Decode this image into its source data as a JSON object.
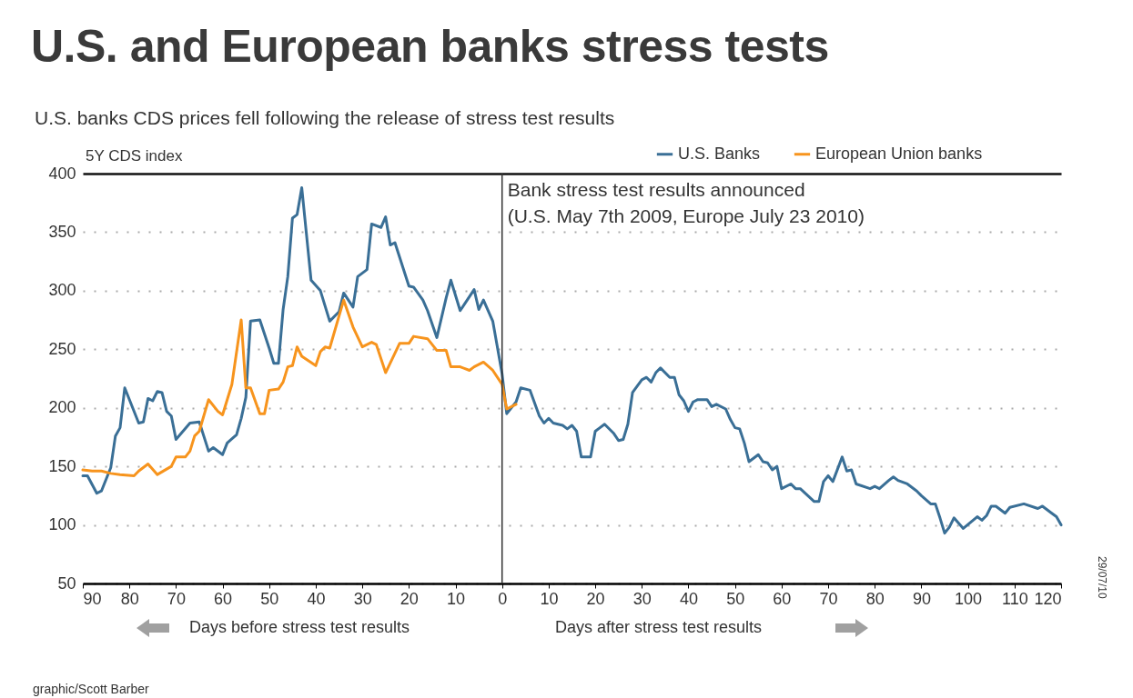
{
  "chart_data": {
    "type": "line",
    "title": "U.S. and European banks stress tests",
    "subtitle": "U.S. banks CDS prices fell following the release of stress test results",
    "annotations": [
      "5Y CDS index",
      "Days before stress test results",
      "Days after stress test results",
      "graphic/Scott Barber",
      "29/07/10"
    ],
    "xlim": [
      -90,
      120
    ],
    "xticks": [
      {
        "value": -90,
        "label": "90"
      },
      {
        "value": -80,
        "label": "80"
      },
      {
        "value": -70,
        "label": "70"
      },
      {
        "value": -60,
        "label": "60"
      },
      {
        "value": -50,
        "label": "50"
      },
      {
        "value": -40,
        "label": "40"
      },
      {
        "value": -30,
        "label": "30"
      },
      {
        "value": -20,
        "label": "20"
      },
      {
        "value": -10,
        "label": "10"
      },
      0,
      10,
      20,
      30,
      40,
      50,
      60,
      70,
      80,
      90,
      100,
      110,
      120
    ],
    "ylim": [
      50,
      400
    ],
    "yticks": [
      50,
      100,
      150,
      200,
      250,
      300,
      350,
      400
    ],
    "grid": "y",
    "legend": "top right",
    "line_style": "solid",
    "ref_lines": [
      {
        "axis": "x",
        "value": 0,
        "label": "Bank stress test results announced\n(U.S. May 7th 2009, Europe July 23 2010)",
        "color": "#333333"
      }
    ],
    "series": [
      {
        "name": "U.S. Banks",
        "color": "#3a6f96",
        "x": [
          -90,
          -89,
          -87,
          -86,
          -84,
          -83,
          -82,
          -81,
          -78,
          -77,
          -76,
          -75,
          -74,
          -73,
          -72,
          -71,
          -70,
          -67,
          -65,
          -63,
          -62,
          -60,
          -59,
          -57,
          -56,
          -55,
          -54,
          -52,
          -50,
          -49,
          -48,
          -47,
          -46,
          -45,
          -44,
          -43,
          -41,
          -39,
          -37,
          -35,
          -34,
          -32,
          -31,
          -29,
          -28,
          -26,
          -25,
          -24,
          -23,
          -20,
          -19,
          -17,
          -16,
          -14,
          -12,
          -11,
          -9,
          -6,
          -5,
          -4,
          -2,
          0,
          1,
          3,
          4,
          6,
          8,
          9,
          10,
          11,
          13,
          14,
          15,
          16,
          17,
          19,
          20,
          21,
          22,
          24,
          25,
          26,
          27,
          28,
          30,
          31,
          32,
          33,
          34,
          36,
          37,
          38,
          39,
          40,
          41,
          42,
          44,
          45,
          46,
          48,
          49,
          50,
          51,
          52,
          53,
          55,
          56,
          57,
          58,
          59,
          60,
          62,
          63,
          64,
          67,
          68,
          69,
          70,
          71,
          73,
          74,
          75,
          76,
          79,
          80,
          81,
          83,
          84,
          85,
          87,
          89,
          90,
          92,
          93,
          94,
          95,
          96,
          97,
          99,
          102,
          103,
          104,
          105,
          106,
          108,
          109,
          112,
          115,
          116,
          118,
          119,
          120
        ],
        "values": [
          142,
          142,
          127,
          129,
          149,
          176,
          183,
          217,
          187,
          188,
          208,
          206,
          214,
          213,
          197,
          193,
          173,
          187,
          188,
          163,
          166,
          160,
          170,
          177,
          191,
          209,
          274,
          275,
          251,
          238,
          238,
          284,
          312,
          362,
          365,
          388,
          309,
          300,
          274,
          282,
          298,
          286,
          312,
          318,
          357,
          354,
          363,
          339,
          341,
          304,
          303,
          292,
          283,
          260,
          294,
          309,
          283,
          301,
          284,
          292,
          274,
          229,
          195,
          205,
          217,
          215,
          193,
          187,
          191,
          187,
          185,
          182,
          185,
          180,
          158,
          158,
          180,
          183,
          186,
          178,
          172,
          173,
          186,
          213,
          224,
          226,
          222,
          230,
          234,
          226,
          226,
          211,
          206,
          197,
          205,
          207,
          207,
          201,
          203,
          199,
          190,
          183,
          182,
          170,
          154,
          160,
          154,
          153,
          147,
          150,
          131,
          135,
          131,
          131,
          120,
          120,
          137,
          142,
          137,
          158,
          146,
          147,
          135,
          131,
          133,
          131,
          138,
          141,
          138,
          135,
          129,
          125,
          118,
          118,
          106,
          93,
          98,
          106,
          97,
          107,
          104,
          108,
          116,
          116,
          110,
          115,
          118,
          114,
          116,
          110,
          107,
          100
        ]
      },
      {
        "name": "European Union banks",
        "color": "#f7941d",
        "x": [
          -90,
          -88,
          -86,
          -84,
          -82,
          -79,
          -78,
          -76,
          -74,
          -71,
          -70,
          -68,
          -67,
          -66,
          -65,
          -63,
          -61,
          -60,
          -58,
          -56,
          -55,
          -54,
          -52,
          -51,
          -50,
          -48,
          -47,
          -46,
          -45,
          -44,
          -43,
          -40,
          -39,
          -38,
          -37,
          -34,
          -32,
          -30,
          -28,
          -27,
          -25,
          -22,
          -20,
          -19,
          -16,
          -14,
          -12,
          -11,
          -9,
          -7,
          -6,
          -4,
          -2,
          0,
          1,
          3
        ],
        "values": [
          147,
          146,
          146,
          144,
          143,
          142,
          146,
          152,
          143,
          150,
          158,
          158,
          163,
          176,
          180,
          207,
          197,
          194,
          220,
          275,
          217,
          217,
          195,
          195,
          215,
          216,
          222,
          235,
          236,
          252,
          244,
          236,
          248,
          252,
          251,
          292,
          269,
          252,
          256,
          254,
          230,
          255,
          255,
          261,
          259,
          249,
          249,
          235,
          235,
          232,
          235,
          239,
          232,
          220,
          199,
          203
        ]
      }
    ]
  }
}
